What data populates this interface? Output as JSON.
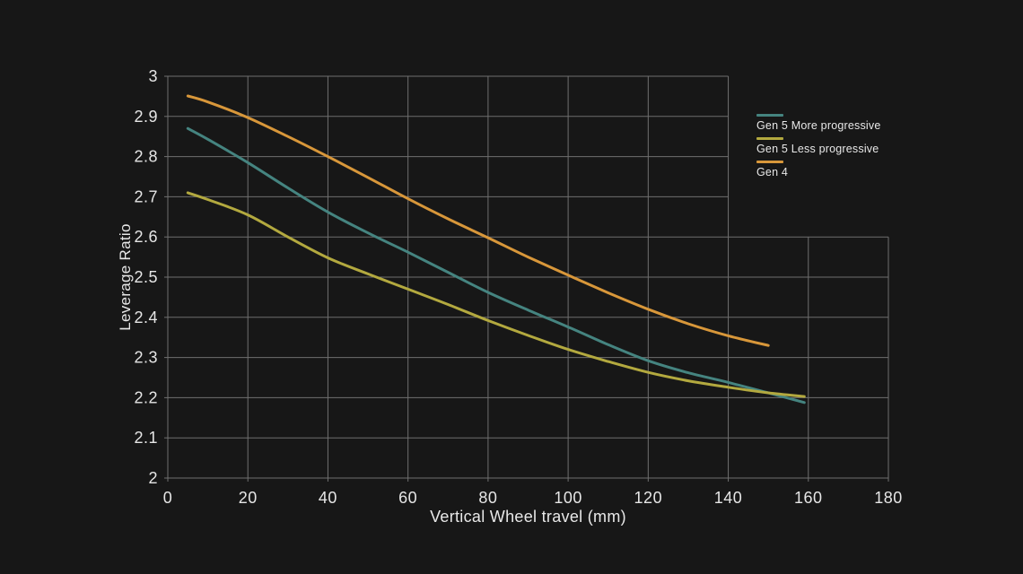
{
  "colors": {
    "background": "#171717",
    "grid": "#6f6f6f",
    "text": "#e8e8e8"
  },
  "chart_data": {
    "type": "line",
    "title": "",
    "xlabel": "Vertical Wheel travel (mm)",
    "ylabel": "Leverage Ratio",
    "xlim": [
      0,
      180
    ],
    "ylim": [
      2,
      3
    ],
    "x_ticks": [
      0,
      20,
      40,
      60,
      80,
      100,
      120,
      140,
      160,
      180
    ],
    "y_ticks": [
      "2",
      "2.1",
      "2.2",
      "2.3",
      "2.4",
      "2.5",
      "2.6",
      "2.7",
      "2.8",
      "2.9",
      "3"
    ],
    "grid": "on",
    "grid_shape": {
      "note": "gridlines above this y value extend only to x_max_above",
      "y_threshold": 2.6,
      "x_max_above": 140
    },
    "legend_position": "right-top",
    "series": [
      {
        "name": "Gen 5 More progressive",
        "color": "#458480",
        "x": [
          5,
          10,
          20,
          30,
          40,
          50,
          60,
          70,
          80,
          90,
          100,
          110,
          120,
          130,
          140,
          150,
          159
        ],
        "y": [
          2.87,
          2.843,
          2.785,
          2.722,
          2.662,
          2.61,
          2.562,
          2.512,
          2.462,
          2.418,
          2.376,
          2.332,
          2.292,
          2.262,
          2.238,
          2.212,
          2.188
        ]
      },
      {
        "name": "Gen 5 Less progressive",
        "color": "#b3a93f",
        "x": [
          5,
          10,
          20,
          30,
          40,
          50,
          60,
          70,
          80,
          90,
          100,
          110,
          120,
          130,
          140,
          150,
          159
        ],
        "y": [
          2.71,
          2.693,
          2.655,
          2.6,
          2.548,
          2.508,
          2.47,
          2.432,
          2.392,
          2.355,
          2.32,
          2.29,
          2.263,
          2.242,
          2.226,
          2.212,
          2.203
        ]
      },
      {
        "name": "Gen 4",
        "color": "#d8973a",
        "x": [
          5,
          10,
          20,
          30,
          40,
          50,
          60,
          70,
          80,
          90,
          100,
          110,
          120,
          130,
          140,
          150
        ],
        "y": [
          2.951,
          2.936,
          2.897,
          2.85,
          2.8,
          2.748,
          2.695,
          2.645,
          2.598,
          2.55,
          2.505,
          2.461,
          2.42,
          2.384,
          2.354,
          2.33
        ]
      }
    ]
  }
}
